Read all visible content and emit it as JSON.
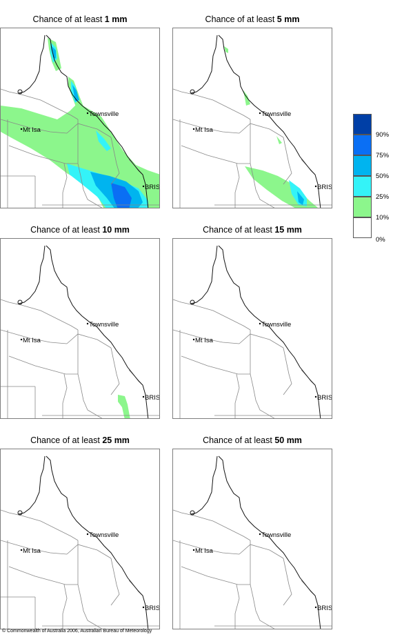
{
  "panels": [
    {
      "prefix": "Chance of at least ",
      "amount": "1 mm",
      "town1": "Townsville",
      "town2": "Mt Isa",
      "town3": "BRIS"
    },
    {
      "prefix": "Chance of at least ",
      "amount": "5 mm",
      "town1": "Townsville",
      "town2": "Mt Isa",
      "town3": "BRIS"
    },
    {
      "prefix": "Chance of at least ",
      "amount": "10 mm",
      "town1": "Townsville",
      "town2": "Mt Isa",
      "town3": "BRIS"
    },
    {
      "prefix": "Chance of at least ",
      "amount": "15 mm",
      "town1": "Townsville",
      "town2": "Mt Isa",
      "town3": "BRIS"
    },
    {
      "prefix": "Chance of at least ",
      "amount": "25 mm",
      "town1": "Townsville",
      "town2": "Mt Isa",
      "town3": "BRIS"
    },
    {
      "prefix": "Chance of at least ",
      "amount": "50 mm",
      "town1": "Townsville",
      "town2": "Mt Isa",
      "town3": "BRIS"
    }
  ],
  "legend": {
    "labels": [
      "90%",
      "75%",
      "50%",
      "25%",
      "10%",
      "0%"
    ],
    "colors": [
      "#003fa6",
      "#0a6ff4",
      "#00b4ef",
      "#34f3f8",
      "#8cf68c",
      "#ffffff"
    ]
  },
  "copyright": "© Commonwealth of Australia 2006, Australian Bureau of Meteorology"
}
